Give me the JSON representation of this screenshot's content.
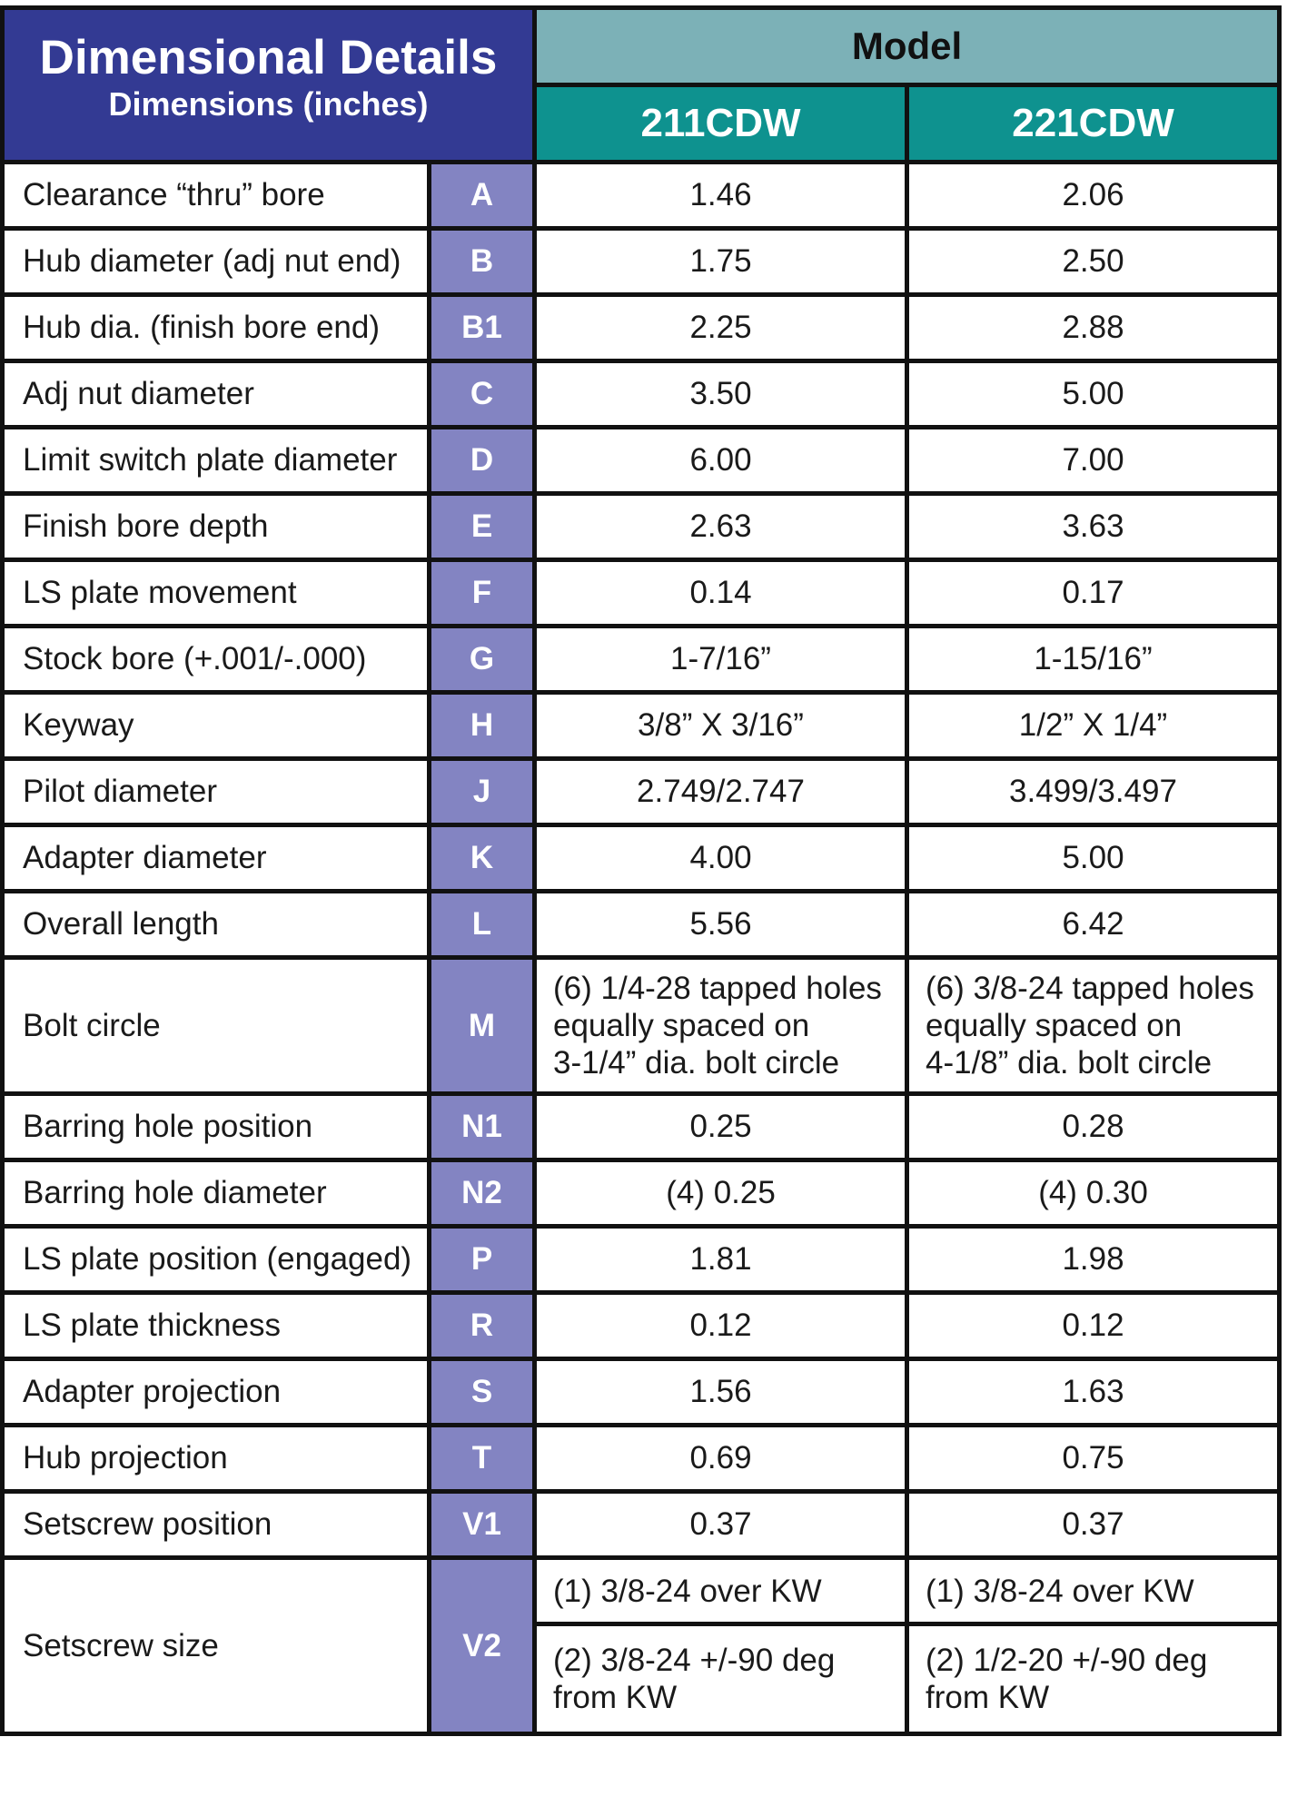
{
  "header": {
    "title": "Dimensional Details",
    "subtitle": "Dimensions (inches)",
    "model_label": "Model",
    "models": [
      "211CDW",
      "221CDW"
    ]
  },
  "rows": [
    {
      "desc": "Clearance “thru” bore",
      "code": "A",
      "v1": "1.46",
      "v2": "2.06"
    },
    {
      "desc": "Hub diameter (adj nut end)",
      "code": "B",
      "v1": "1.75",
      "v2": "2.50"
    },
    {
      "desc": "Hub dia. (finish bore end)",
      "code": "B1",
      "v1": "2.25",
      "v2": "2.88"
    },
    {
      "desc": "Adj nut diameter",
      "code": "C",
      "v1": "3.50",
      "v2": "5.00"
    },
    {
      "desc": "Limit switch plate diameter",
      "code": "D",
      "v1": "6.00",
      "v2": "7.00"
    },
    {
      "desc": "Finish bore depth",
      "code": "E",
      "v1": "2.63",
      "v2": "3.63"
    },
    {
      "desc": "LS plate movement",
      "code": "F",
      "v1": "0.14",
      "v2": "0.17"
    },
    {
      "desc": "Stock bore (+.001/-.000)",
      "code": "G",
      "v1": "1-7/16”",
      "v2": "1-15/16”"
    },
    {
      "desc": "Keyway",
      "code": "H",
      "v1": "3/8” X 3/16”",
      "v2": "1/2” X 1/4”"
    },
    {
      "desc": "Pilot diameter",
      "code": "J",
      "v1": "2.749/2.747",
      "v2": "3.499/3.497"
    },
    {
      "desc": "Adapter diameter",
      "code": "K",
      "v1": "4.00",
      "v2": "5.00"
    },
    {
      "desc": "Overall length",
      "code": "L",
      "v1": "5.56",
      "v2": "6.42"
    },
    {
      "desc": "Bolt circle",
      "code": "M",
      "v1_lines": [
        "(6) 1/4-28 tapped holes",
        "equally spaced on",
        "3-1/4” dia. bolt circle"
      ],
      "v2_lines": [
        "(6) 3/8-24 tapped holes",
        "equally spaced on",
        "4-1/8” dia. bolt circle"
      ]
    },
    {
      "desc": "Barring hole position",
      "code": "N1",
      "v1": "0.25",
      "v2": "0.28"
    },
    {
      "desc": "Barring hole diameter",
      "code": "N2",
      "v1": "(4) 0.25",
      "v2": "(4) 0.30"
    },
    {
      "desc": "LS plate position (engaged)",
      "code": "P",
      "v1": "1.81",
      "v2": "1.98"
    },
    {
      "desc": "LS plate thickness",
      "code": "R",
      "v1": "0.12",
      "v2": "0.12"
    },
    {
      "desc": "Adapter projection",
      "code": "S",
      "v1": "1.56",
      "v2": "1.63"
    },
    {
      "desc": "Hub projection",
      "code": "T",
      "v1": "0.69",
      "v2": "0.75"
    },
    {
      "desc": "Setscrew position",
      "code": "V1",
      "v1": "0.37",
      "v2": "0.37"
    }
  ],
  "setscrew_size": {
    "desc": "Setscrew size",
    "code": "V2",
    "v1": [
      "(1) 3/8-24 over KW",
      "(2) 3/8-24 +/-90 deg",
      "from KW"
    ],
    "v2": [
      "(1) 3/8-24 over KW",
      "(2) 1/2-20 +/-90 deg",
      "from KW"
    ]
  }
}
